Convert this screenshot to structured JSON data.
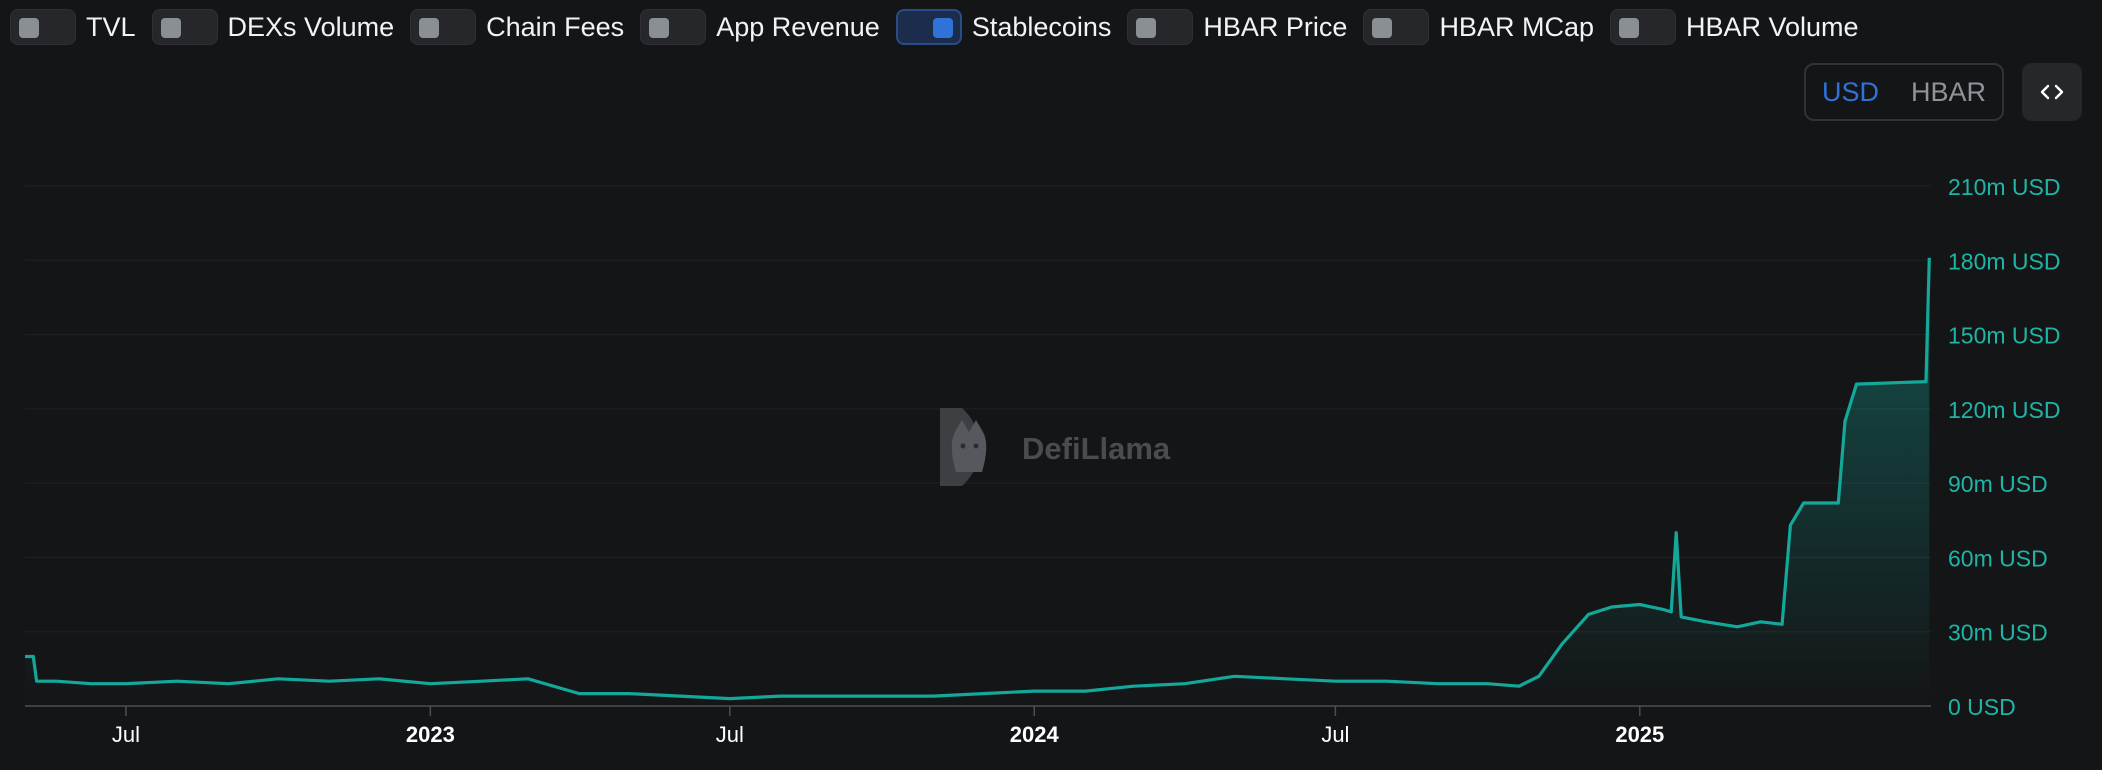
{
  "toggles": [
    {
      "label": "TVL",
      "on": false
    },
    {
      "label": "DEXs Volume",
      "on": false
    },
    {
      "label": "Chain Fees",
      "on": false
    },
    {
      "label": "App Revenue",
      "on": false
    },
    {
      "label": "Stablecoins",
      "on": true
    },
    {
      "label": "HBAR Price",
      "on": false
    },
    {
      "label": "HBAR MCap",
      "on": false
    },
    {
      "label": "HBAR Volume",
      "on": false
    }
  ],
  "currency": {
    "options": [
      "USD",
      "HBAR"
    ],
    "selected": "USD"
  },
  "embed_icon": "code-brackets-icon",
  "watermark": {
    "text": "DefiLlama"
  },
  "colors": {
    "background": "#141517",
    "line": "#14a89a",
    "axis_text": "#1fb5a6",
    "accent": "#2f73d8"
  },
  "chart_data": {
    "type": "area",
    "title": "",
    "xlabel": "",
    "ylabel": "",
    "ylim": [
      0,
      210
    ],
    "y_unit": "m USD",
    "y_ticks": [
      "0 USD",
      "30m USD",
      "60m USD",
      "90m USD",
      "120m USD",
      "150m USD",
      "180m USD",
      "210m USD"
    ],
    "x_ticks": [
      {
        "date": "2022-07-01",
        "label": "Jul",
        "bold": false
      },
      {
        "date": "2023-01-01",
        "label": "2023",
        "bold": true
      },
      {
        "date": "2023-07-01",
        "label": "Jul",
        "bold": false
      },
      {
        "date": "2024-01-01",
        "label": "2024",
        "bold": true
      },
      {
        "date": "2024-07-01",
        "label": "Jul",
        "bold": false
      },
      {
        "date": "2025-01-01",
        "label": "2025",
        "bold": true
      }
    ],
    "xlim": [
      "2022-05-01",
      "2025-06-26"
    ],
    "grid": true,
    "legend": "none",
    "series": [
      {
        "values": [
          [
            "2022-05-01",
            20
          ],
          [
            "2022-05-06",
            20
          ],
          [
            "2022-05-08",
            10
          ],
          [
            "2022-05-20",
            10
          ],
          [
            "2022-06-10",
            9
          ],
          [
            "2022-07-01",
            9
          ],
          [
            "2022-08-01",
            10
          ],
          [
            "2022-09-01",
            9
          ],
          [
            "2022-10-01",
            11
          ],
          [
            "2022-11-01",
            10
          ],
          [
            "2022-12-01",
            11
          ],
          [
            "2023-01-01",
            9
          ],
          [
            "2023-02-01",
            10
          ],
          [
            "2023-03-01",
            11
          ],
          [
            "2023-04-01",
            5
          ],
          [
            "2023-05-01",
            5
          ],
          [
            "2023-06-01",
            4
          ],
          [
            "2023-07-01",
            3
          ],
          [
            "2023-08-01",
            4
          ],
          [
            "2023-09-01",
            4
          ],
          [
            "2023-10-01",
            4
          ],
          [
            "2023-11-01",
            4
          ],
          [
            "2023-12-01",
            5
          ],
          [
            "2024-01-01",
            6
          ],
          [
            "2024-02-01",
            6
          ],
          [
            "2024-03-01",
            8
          ],
          [
            "2024-04-01",
            9
          ],
          [
            "2024-05-01",
            12
          ],
          [
            "2024-06-01",
            11
          ],
          [
            "2024-07-01",
            10
          ],
          [
            "2024-08-01",
            10
          ],
          [
            "2024-09-01",
            9
          ],
          [
            "2024-10-01",
            9
          ],
          [
            "2024-10-20",
            8
          ],
          [
            "2024-11-01",
            12
          ],
          [
            "2024-11-15",
            25
          ],
          [
            "2024-12-01",
            37
          ],
          [
            "2024-12-15",
            40
          ],
          [
            "2025-01-01",
            41
          ],
          [
            "2025-01-15",
            39
          ],
          [
            "2025-01-20",
            38
          ],
          [
            "2025-01-23",
            70
          ],
          [
            "2025-01-26",
            36
          ],
          [
            "2025-02-10",
            34
          ],
          [
            "2025-03-01",
            32
          ],
          [
            "2025-03-15",
            34
          ],
          [
            "2025-03-28",
            33
          ],
          [
            "2025-04-02",
            73
          ],
          [
            "2025-04-10",
            82
          ],
          [
            "2025-05-01",
            82
          ],
          [
            "2025-05-05",
            115
          ],
          [
            "2025-05-12",
            130
          ],
          [
            "2025-06-23",
            131
          ],
          [
            "2025-06-25",
            181
          ]
        ]
      }
    ]
  }
}
